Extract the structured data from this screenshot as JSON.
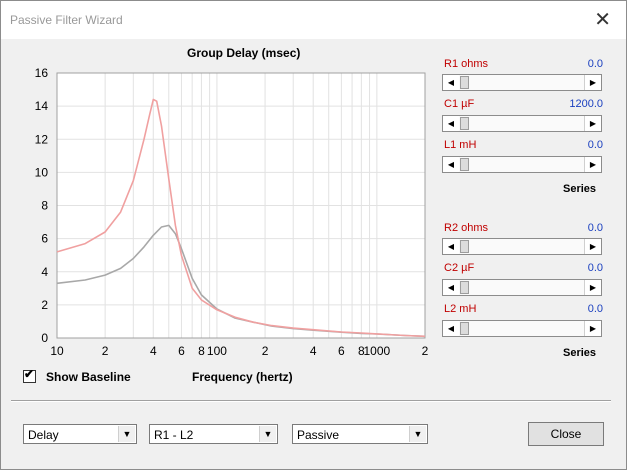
{
  "window": {
    "title": "Passive Filter Wizard"
  },
  "chart_data": {
    "type": "line",
    "title": "Group Delay (msec)",
    "xlabel": "Frequency (hertz)",
    "ylabel": "",
    "xscale": "log",
    "xlim": [
      10,
      2000
    ],
    "ylim": [
      0,
      16
    ],
    "y_ticks": [
      0,
      2,
      4,
      6,
      8,
      10,
      12,
      14,
      16
    ],
    "x_ticks": [
      {
        "v": 10,
        "label": "10"
      },
      {
        "v": 20,
        "label": "2"
      },
      {
        "v": 40,
        "label": "4"
      },
      {
        "v": 60,
        "label": "6"
      },
      {
        "v": 80,
        "label": "8"
      },
      {
        "v": 100,
        "label": "100"
      },
      {
        "v": 200,
        "label": "2"
      },
      {
        "v": 400,
        "label": "4"
      },
      {
        "v": 600,
        "label": "6"
      },
      {
        "v": 800,
        "label": "8"
      },
      {
        "v": 1000,
        "label": "1000"
      },
      {
        "v": 2000,
        "label": "2"
      }
    ],
    "grid": true,
    "series": [
      {
        "color": "#f0a0a0",
        "x": [
          10,
          15,
          20,
          25,
          30,
          35,
          38,
          40,
          42,
          45,
          50,
          55,
          60,
          70,
          80,
          100,
          130,
          170,
          220,
          300,
          400,
          600,
          800,
          1000,
          1500,
          2000
        ],
        "y": [
          5.2,
          5.7,
          6.4,
          7.6,
          9.5,
          12.0,
          13.5,
          14.4,
          14.3,
          12.8,
          9.6,
          6.8,
          5.0,
          3.0,
          2.3,
          1.7,
          1.25,
          0.95,
          0.75,
          0.6,
          0.5,
          0.36,
          0.3,
          0.25,
          0.15,
          0.1
        ]
      },
      {
        "color": "#a8a8a8",
        "x": [
          10,
          15,
          20,
          25,
          30,
          35,
          40,
          45,
          50,
          55,
          60,
          70,
          80,
          100,
          130,
          170,
          220,
          300,
          400,
          600,
          800,
          1000,
          1500,
          2000
        ],
        "y": [
          3.3,
          3.5,
          3.8,
          4.2,
          4.8,
          5.5,
          6.2,
          6.7,
          6.8,
          6.3,
          5.4,
          3.6,
          2.6,
          1.75,
          1.2,
          0.95,
          0.72,
          0.57,
          0.47,
          0.35,
          0.28,
          0.24,
          0.15,
          0.1
        ]
      }
    ]
  },
  "baseline": {
    "label": "Show Baseline",
    "checked": true
  },
  "controls": [
    {
      "label": "R1  ohms",
      "value": "0.0",
      "position": 0.0
    },
    {
      "label": "C1  µF",
      "value": "1200.0",
      "position": 0.0
    },
    {
      "label": "L1  mH",
      "value": "0.0",
      "position": 0.0
    },
    {
      "label": "R2  ohms",
      "value": "0.0",
      "position": 0.0
    },
    {
      "label": "C2  µF",
      "value": "0.0",
      "position": 0.0
    },
    {
      "label": "L2  mH",
      "value": "0.0",
      "position": 0.0
    }
  ],
  "groups": {
    "series1": "Series",
    "series2": "Series"
  },
  "bottom": {
    "select1": "Delay",
    "select2": "R1 - L2",
    "select3": "Passive",
    "close_label": "Close"
  }
}
